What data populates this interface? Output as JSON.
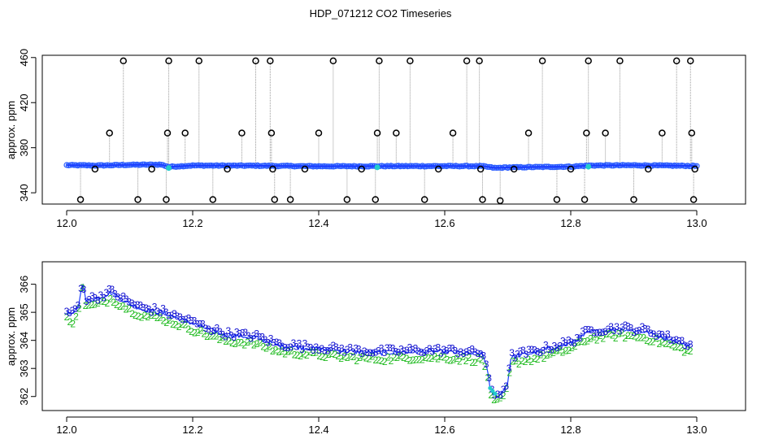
{
  "title": "HDP_071212  CO2 Timeseries",
  "colors": {
    "outlier_marker": "#000000",
    "connector_line": "#9a9a9a",
    "main_line": "#1a3cff",
    "main_points": "#2a5cff",
    "cyan_points": "#22cccc",
    "series_3": "#1010d0",
    "series_2": "#22bb22"
  },
  "chart_data": [
    {
      "type": "scatter",
      "title": "",
      "xlabel": "",
      "ylabel": "approx. ppm",
      "xlim": [
        12.0,
        13.0
      ],
      "ylim": [
        330,
        462
      ],
      "xticks": [
        "12.0",
        "12.2",
        "12.4",
        "12.6",
        "12.8",
        "13.0"
      ],
      "yticks": [
        "340",
        "380",
        "420",
        "460"
      ],
      "grid": false,
      "baseline": [
        [
          12.0,
          364.5
        ],
        [
          12.05,
          364.2
        ],
        [
          12.1,
          364.8
        ],
        [
          12.15,
          365.0
        ],
        [
          12.162,
          363.0
        ],
        [
          12.2,
          364.2
        ],
        [
          12.3,
          364.0
        ],
        [
          12.4,
          363.5
        ],
        [
          12.5,
          363.6
        ],
        [
          12.6,
          363.7
        ],
        [
          12.66,
          363.6
        ],
        [
          12.68,
          362.0
        ],
        [
          12.7,
          362.5
        ],
        [
          12.8,
          363.2
        ],
        [
          12.83,
          364.2
        ],
        [
          12.9,
          364.4
        ],
        [
          13.0,
          363.8
        ]
      ],
      "spikes": [
        [
          12.022,
          334
        ],
        [
          12.045,
          361
        ],
        [
          12.068,
          393
        ],
        [
          12.09,
          457
        ],
        [
          12.113,
          334
        ],
        [
          12.135,
          361
        ],
        [
          12.158,
          334
        ],
        [
          12.16,
          393
        ],
        [
          12.162,
          457
        ],
        [
          12.188,
          393
        ],
        [
          12.21,
          457
        ],
        [
          12.232,
          334
        ],
        [
          12.255,
          361
        ],
        [
          12.278,
          393
        ],
        [
          12.3,
          457
        ],
        [
          12.323,
          457
        ],
        [
          12.325,
          393
        ],
        [
          12.327,
          361
        ],
        [
          12.33,
          334
        ],
        [
          12.355,
          334
        ],
        [
          12.378,
          361
        ],
        [
          12.4,
          393
        ],
        [
          12.423,
          457
        ],
        [
          12.445,
          334
        ],
        [
          12.468,
          361
        ],
        [
          12.49,
          334
        ],
        [
          12.493,
          393
        ],
        [
          12.496,
          457
        ],
        [
          12.523,
          393
        ],
        [
          12.545,
          457
        ],
        [
          12.568,
          334
        ],
        [
          12.59,
          361
        ],
        [
          12.613,
          393
        ],
        [
          12.635,
          457
        ],
        [
          12.655,
          457
        ],
        [
          12.657,
          361
        ],
        [
          12.66,
          334
        ],
        [
          12.688,
          333
        ],
        [
          12.71,
          361
        ],
        [
          12.733,
          393
        ],
        [
          12.755,
          457
        ],
        [
          12.778,
          334
        ],
        [
          12.8,
          361
        ],
        [
          12.822,
          334
        ],
        [
          12.825,
          393
        ],
        [
          12.828,
          457
        ],
        [
          12.855,
          393
        ],
        [
          12.878,
          457
        ],
        [
          12.9,
          334
        ],
        [
          12.923,
          361
        ],
        [
          12.945,
          393
        ],
        [
          12.968,
          457
        ],
        [
          12.99,
          457
        ],
        [
          12.992,
          393
        ],
        [
          12.995,
          334
        ],
        [
          12.997,
          361
        ]
      ]
    },
    {
      "type": "scatter",
      "title": "",
      "xlabel": "",
      "ylabel": "approx. ppm",
      "xlim": [
        12.0,
        13.0
      ],
      "ylim": [
        361.5,
        366.8
      ],
      "xticks": [
        "12.0",
        "12.2",
        "12.4",
        "12.6",
        "12.8",
        "13.0"
      ],
      "yticks": [
        "362",
        "363",
        "364",
        "365",
        "366"
      ],
      "grid": false,
      "series": [
        {
          "name": "3",
          "marker": "3"
        },
        {
          "name": "2",
          "marker": "2"
        }
      ],
      "trend": [
        [
          12.0,
          365.0
        ],
        [
          12.01,
          364.9
        ],
        [
          12.02,
          365.3
        ],
        [
          12.025,
          366.2
        ],
        [
          12.03,
          365.4
        ],
        [
          12.05,
          365.5
        ],
        [
          12.07,
          365.7
        ],
        [
          12.1,
          365.3
        ],
        [
          12.12,
          365.1
        ],
        [
          12.15,
          365.0
        ],
        [
          12.2,
          364.6
        ],
        [
          12.25,
          364.2
        ],
        [
          12.3,
          364.1
        ],
        [
          12.34,
          363.8
        ],
        [
          12.4,
          363.7
        ],
        [
          12.45,
          363.6
        ],
        [
          12.5,
          363.55
        ],
        [
          12.55,
          363.6
        ],
        [
          12.6,
          363.6
        ],
        [
          12.66,
          363.5
        ],
        [
          12.668,
          363.0
        ],
        [
          12.672,
          362.2
        ],
        [
          12.68,
          362.0
        ],
        [
          12.69,
          362.1
        ],
        [
          12.7,
          362.5
        ],
        [
          12.705,
          363.4
        ],
        [
          12.75,
          363.6
        ],
        [
          12.8,
          363.9
        ],
        [
          12.83,
          364.3
        ],
        [
          12.88,
          364.4
        ],
        [
          12.92,
          364.3
        ],
        [
          12.95,
          364.1
        ],
        [
          12.99,
          363.8
        ]
      ]
    }
  ]
}
